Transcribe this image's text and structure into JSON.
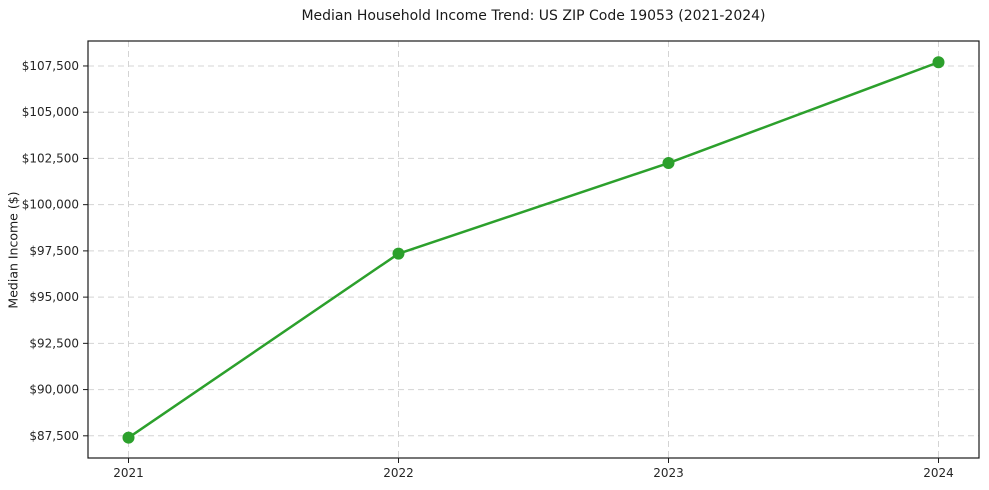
{
  "chart_data": {
    "type": "line",
    "title": "Median Household Income Trend: US ZIP Code 19053 (2021-2024)",
    "xlabel": "",
    "ylabel": "Median Income ($)",
    "x": [
      2021,
      2022,
      2023,
      2024
    ],
    "x_tick_labels": [
      "2021",
      "2022",
      "2023",
      "2024"
    ],
    "series": [
      {
        "name": "Median Household Income",
        "values": [
          87400,
          97350,
          102250,
          107700
        ]
      }
    ],
    "y_ticks": [
      87500,
      90000,
      92500,
      95000,
      97500,
      100000,
      102500,
      105000,
      107500
    ],
    "y_tick_labels": [
      "$87,500",
      "$90,000",
      "$92,500",
      "$95,000",
      "$97,500",
      "$100,000",
      "$102,500",
      "$105,000",
      "$107,500"
    ],
    "xlim": [
      2020.85,
      2024.15
    ],
    "ylim": [
      86300,
      108850
    ],
    "grid": true,
    "grid_style": "dashed",
    "legend_position": "none",
    "colors": {
      "line": "#2ca02c",
      "marker": "#2ca02c",
      "grid": "#d4d4d4",
      "spine": "#1a1a1a",
      "tick_label": "#262626",
      "background": "#ffffff"
    },
    "marker": "circle",
    "marker_radius": 6,
    "line_width": 2.5
  }
}
